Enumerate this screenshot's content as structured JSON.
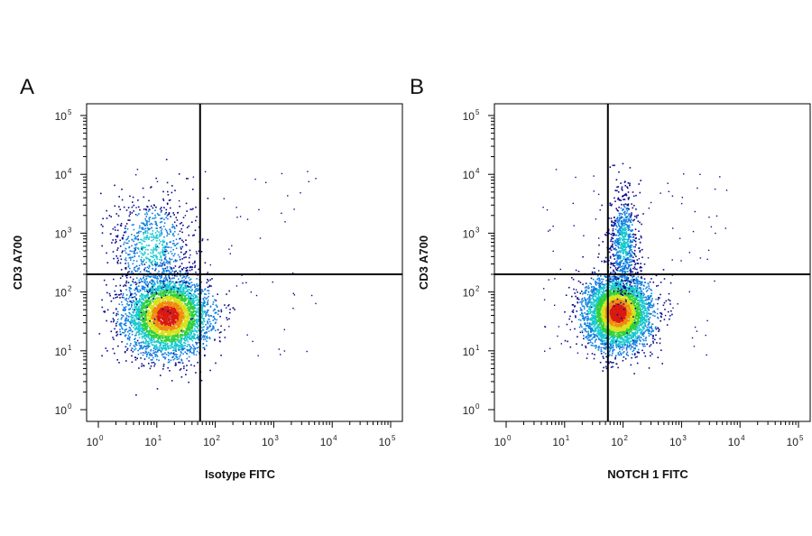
{
  "chart_data": [
    {
      "panel": "A",
      "type": "scatter",
      "xlabel": "Isotype FITC",
      "ylabel": "CD3 A700",
      "x_scale": "log",
      "y_scale": "log",
      "xlim": [
        1,
        100000
      ],
      "ylim": [
        1,
        100000
      ],
      "x_ticks": [
        "10^0",
        "10^1",
        "10^2",
        "10^3",
        "10^4",
        "10^5"
      ],
      "y_ticks": [
        "10^0",
        "10^1",
        "10^2",
        "10^3",
        "10^4",
        "10^5"
      ],
      "quadrant_gate": {
        "x": 55,
        "y": 200
      },
      "populations": [
        {
          "center_x": 15,
          "center_y": 40,
          "spread_x_decades": 0.35,
          "spread_y_decades": 0.32,
          "weight": 0.85
        },
        {
          "center_x": 8,
          "center_y": 600,
          "spread_x_decades": 0.35,
          "spread_y_decades": 0.45,
          "weight": 0.15
        }
      ]
    },
    {
      "panel": "B",
      "type": "scatter",
      "xlabel": "NOTCH 1 FITC",
      "ylabel": "CD3 A700",
      "x_scale": "log",
      "y_scale": "log",
      "xlim": [
        1,
        100000
      ],
      "ylim": [
        1,
        100000
      ],
      "x_ticks": [
        "10^0",
        "10^1",
        "10^2",
        "10^3",
        "10^4",
        "10^5"
      ],
      "y_ticks": [
        "10^0",
        "10^1",
        "10^2",
        "10^3",
        "10^4",
        "10^5"
      ],
      "quadrant_gate": {
        "x": 55,
        "y": 200
      },
      "populations": [
        {
          "center_x": 80,
          "center_y": 45,
          "spread_x_decades": 0.28,
          "spread_y_decades": 0.3,
          "weight": 0.85
        },
        {
          "center_x": 100,
          "center_y": 700,
          "spread_x_decades": 0.12,
          "spread_y_decades": 0.45,
          "weight": 0.15
        }
      ]
    }
  ]
}
